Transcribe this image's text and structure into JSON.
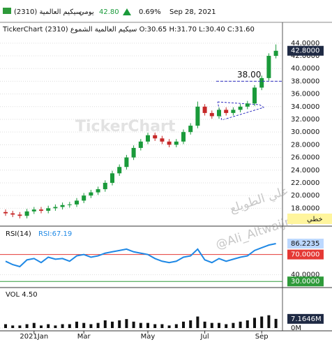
{
  "header": {
    "title": "سيكيم العالمية (2310)",
    "period": "يومي",
    "price": {
      "value": 42.8,
      "label": "42.80"
    },
    "change": {
      "value": 0.69,
      "label": "0.69%"
    },
    "date": "Sep 28, 2021",
    "watermark": "TickerChart",
    "author": "علي الطويلع",
    "handle": "@Ali_Altwaijri",
    "line_tag": "خطي"
  },
  "chart_data": [
    {
      "type": "candlestick",
      "title": "TickerChart سيكيم العالمية الشموع (2310) O:30.65 H:31.70 L:30.40 C:31.60",
      "open": [
        17.4,
        17.2,
        17.0,
        16.8,
        17.5,
        17.8,
        17.6,
        18.0,
        18.2,
        18.5,
        18.6,
        19.2,
        20.0,
        20.5,
        21.0,
        22.0,
        23.5,
        24.5,
        26.0,
        27.5,
        28.5,
        29.5,
        29.0,
        28.5,
        28.0,
        28.5,
        30.0,
        31.0,
        34.0,
        33.0,
        32.5,
        33.5,
        33.0,
        33.5,
        34.0,
        34.5,
        37.0,
        38.5,
        42.0
      ],
      "high": [
        17.8,
        17.6,
        17.4,
        17.9,
        18.2,
        18.2,
        18.4,
        18.6,
        18.9,
        19.0,
        19.6,
        20.4,
        20.9,
        21.4,
        22.4,
        23.9,
        24.9,
        26.4,
        27.9,
        28.9,
        29.9,
        29.9,
        29.4,
        28.9,
        28.9,
        30.4,
        31.4,
        34.8,
        34.4,
        33.4,
        33.9,
        33.9,
        33.9,
        34.4,
        34.9,
        37.4,
        38.9,
        42.4,
        43.8
      ],
      "low": [
        16.8,
        16.6,
        16.4,
        16.4,
        17.1,
        17.2,
        17.2,
        17.6,
        17.8,
        18.1,
        18.2,
        18.8,
        19.6,
        20.1,
        20.6,
        21.6,
        23.1,
        24.1,
        25.6,
        27.1,
        28.1,
        28.6,
        28.1,
        27.6,
        27.6,
        28.1,
        29.6,
        30.6,
        32.6,
        32.1,
        32.1,
        32.6,
        32.6,
        33.1,
        33.6,
        34.1,
        36.6,
        38.1,
        41.6
      ],
      "close": [
        17.2,
        17.0,
        16.8,
        17.5,
        17.8,
        17.6,
        18.0,
        18.2,
        18.5,
        18.6,
        19.2,
        20.0,
        20.5,
        21.0,
        22.0,
        23.5,
        24.5,
        26.0,
        27.5,
        28.5,
        29.5,
        29.0,
        28.5,
        28.0,
        28.5,
        30.0,
        31.0,
        34.0,
        33.0,
        32.5,
        33.5,
        33.0,
        33.5,
        34.0,
        34.5,
        37.0,
        38.5,
        42.0,
        42.8
      ],
      "up_color": "#1a9a3a",
      "down_color": "#c62828",
      "ylim": [
        15.4,
        46.4
      ],
      "yticks": [
        {
          "value": 18,
          "label": "18.0000"
        },
        {
          "value": 20,
          "label": "20.0000"
        },
        {
          "value": 22,
          "label": "22.0000"
        },
        {
          "value": 24,
          "label": "24.0000"
        },
        {
          "value": 26,
          "label": "26.0000"
        },
        {
          "value": 28,
          "label": "28.0000"
        },
        {
          "value": 30,
          "label": "30.0000"
        },
        {
          "value": 32,
          "label": "32.0000"
        },
        {
          "value": 34,
          "label": "34.0000"
        },
        {
          "value": 36,
          "label": "36.0000"
        },
        {
          "value": 38,
          "label": "38.0000"
        },
        {
          "value": 40,
          "label": "40.0000"
        },
        {
          "value": 42,
          "label": "42.0000"
        },
        {
          "value": 44,
          "label": "44.0000"
        }
      ],
      "last_value": {
        "value": 42.8,
        "label": "42.8000"
      },
      "annotation": {
        "value": 38,
        "label": "38.00"
      },
      "xticks": [
        {
          "value": 4,
          "label": "2021Jan"
        },
        {
          "value": 11,
          "label": "Mar"
        },
        {
          "value": 20,
          "label": "May"
        },
        {
          "value": 28,
          "label": "Jul"
        },
        {
          "value": 36,
          "label": "Sep"
        }
      ]
    },
    {
      "type": "line",
      "title": "RSI(14)",
      "subtitle": "RSI:67.19",
      "color": "#1e88e5",
      "values": [
        60,
        55,
        52,
        62,
        64,
        58,
        66,
        63,
        64,
        60,
        68,
        70,
        66,
        68,
        72,
        74,
        76,
        78,
        74,
        72,
        70,
        64,
        60,
        58,
        60,
        66,
        68,
        78,
        62,
        58,
        64,
        60,
        63,
        66,
        68,
        76,
        80,
        84,
        86.2235
      ],
      "ylim": [
        23,
        109
      ],
      "yticks": [
        {
          "value": 40,
          "label": "40.0000"
        }
      ],
      "levels": [
        {
          "value": 70,
          "label": "70.0000",
          "color": "#e53935"
        },
        {
          "value": 30,
          "label": "30.0000",
          "color": "#2e9a3a"
        }
      ],
      "last_value": {
        "value": 86.2235,
        "label": "86.2235"
      }
    },
    {
      "type": "bar",
      "title": "VOL 4.50",
      "color": "#111111",
      "values": [
        3,
        2,
        2,
        3,
        4,
        2,
        3,
        2,
        3,
        3,
        5,
        4,
        3,
        4,
        6,
        5,
        6,
        7,
        5,
        4,
        4,
        3,
        3,
        2,
        3,
        5,
        6,
        9,
        5,
        4,
        4,
        3,
        4,
        5,
        6,
        8,
        9,
        10,
        7.1646
      ],
      "ylim": [
        0,
        30
      ],
      "yticks": [
        {
          "value": 0,
          "label": "0M"
        }
      ],
      "last_value": {
        "value": 7.1646,
        "label": "7.1646M"
      }
    }
  ]
}
